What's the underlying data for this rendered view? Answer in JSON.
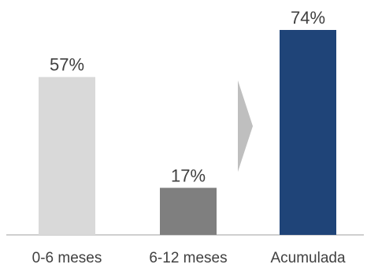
{
  "chart_data": {
    "type": "bar",
    "title": "",
    "xlabel": "",
    "ylabel": "",
    "categories": [
      "0-6 meses",
      "6-12 meses",
      "Acumulada"
    ],
    "values": [
      57,
      17,
      74
    ],
    "value_labels": [
      "57%",
      "17%",
      "74%"
    ],
    "ylim": [
      0,
      80
    ],
    "grid": false,
    "legend": "none",
    "colors": [
      "#d9d9d9",
      "#7f7f7f",
      "#1f4478"
    ],
    "arrow_color": "#bfbfbf",
    "axis_color": "#bfbfbf",
    "label_color": "#404040"
  }
}
